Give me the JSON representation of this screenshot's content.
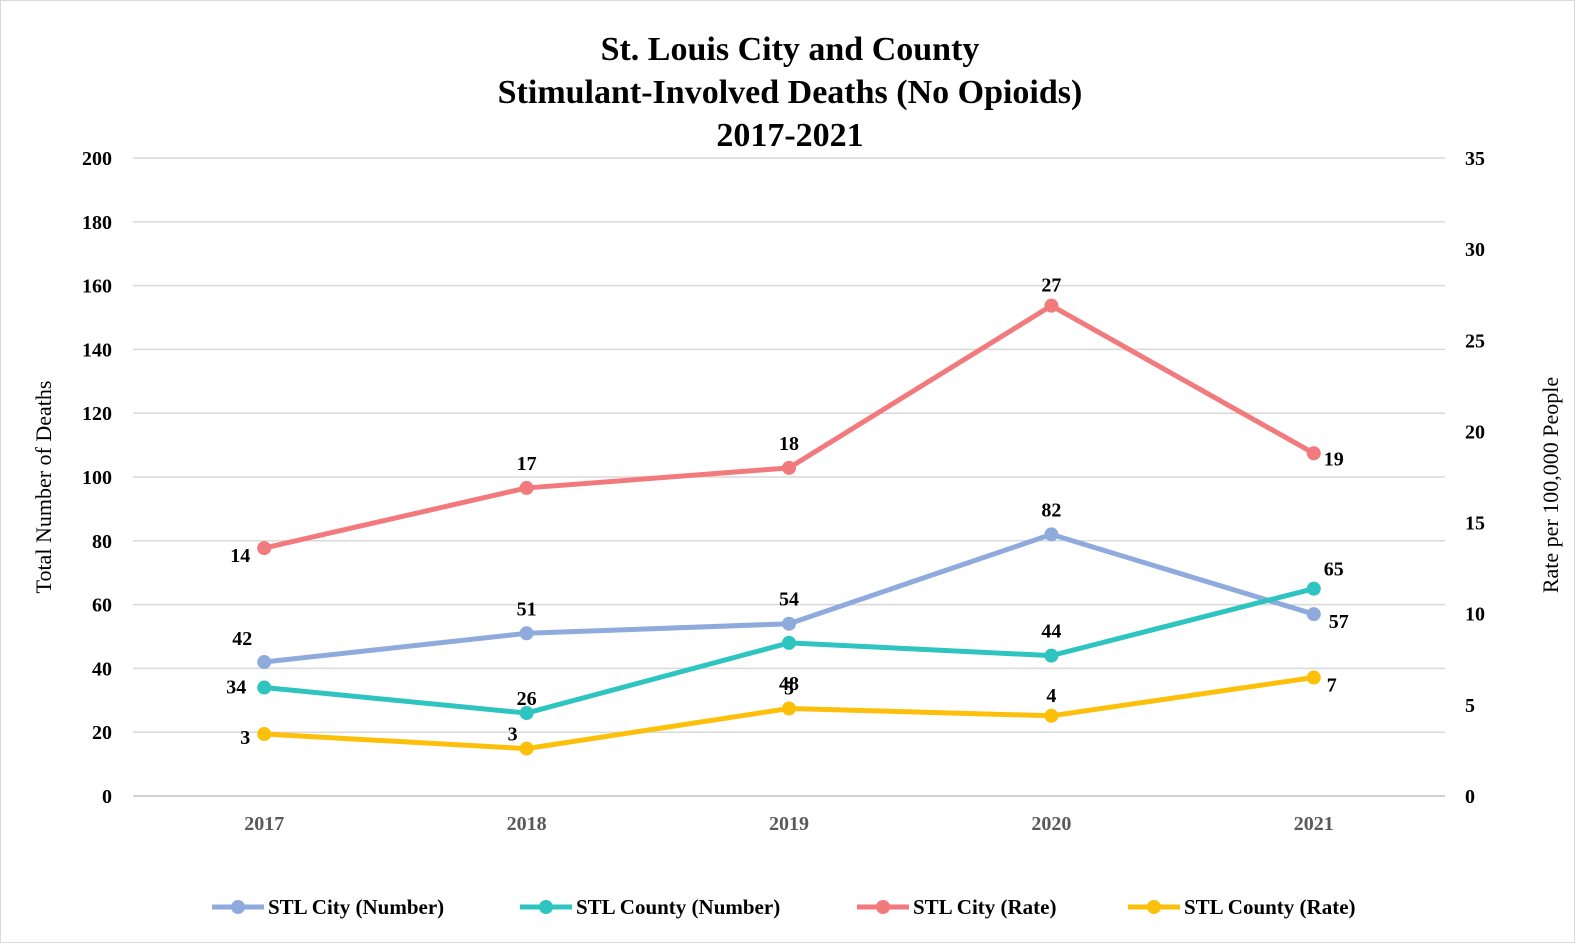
{
  "chart_data": {
    "type": "line",
    "title": [
      "St. Louis City and County",
      "Stimulant-Involved Deaths (No Opioids)",
      "2017-2021"
    ],
    "categories": [
      "2017",
      "2018",
      "2019",
      "2020",
      "2021"
    ],
    "ylabel": "Total Number of Deaths",
    "y2label": "Rate per 100,000 People",
    "ylim": [
      0,
      200
    ],
    "y2lim": [
      0,
      35
    ],
    "yticks": [
      "0",
      "20",
      "40",
      "60",
      "80",
      "100",
      "120",
      "140",
      "160",
      "180",
      "200"
    ],
    "y2ticks": [
      "0",
      "5",
      "10",
      "15",
      "20",
      "25",
      "30",
      "35"
    ],
    "grid": true,
    "legend_position": "bottom",
    "series": [
      {
        "name": "STL City (Number)",
        "axis": "left",
        "color": "#8faadc",
        "values": [
          42,
          51,
          54,
          82,
          57
        ],
        "labels": [
          "42",
          "51",
          "54",
          "82",
          "57"
        ]
      },
      {
        "name": "STL County (Number)",
        "axis": "left",
        "color": "#2ec4c0",
        "values": [
          34,
          26,
          48,
          44,
          65
        ],
        "labels": [
          "34",
          "26",
          "48",
          "44",
          "65"
        ]
      },
      {
        "name": "STL City (Rate)",
        "axis": "right",
        "color": "#f27a7d",
        "values": [
          13.6,
          16.9,
          18.0,
          26.9,
          18.8
        ],
        "labels": [
          "14",
          "17",
          "18",
          "27",
          "19"
        ]
      },
      {
        "name": "STL County (Rate)",
        "axis": "right",
        "color": "#fcc00a",
        "values": [
          3.4,
          2.6,
          4.8,
          4.4,
          6.5
        ],
        "labels": [
          "3",
          "3",
          "5",
          "4",
          "7"
        ]
      }
    ]
  }
}
